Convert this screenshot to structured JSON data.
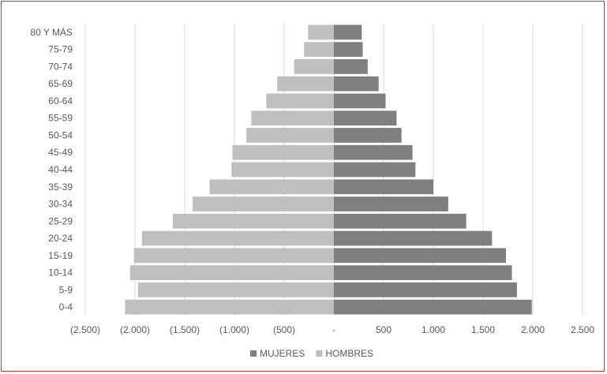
{
  "chart_data": {
    "type": "bar",
    "orientation": "horizontal",
    "stacked": true,
    "categories": [
      "80 Y MÁS",
      "75-79",
      "70-74",
      "65-69",
      "60-64",
      "55-59",
      "50-54",
      "45-49",
      "40-44",
      "35-39",
      "30-34",
      "25-29",
      "20-24",
      "15-19",
      "10-14",
      "5-9",
      "0-4"
    ],
    "series": [
      {
        "name": "MUJERES",
        "color": "#7f7f7f",
        "values": [
          280,
          290,
          340,
          450,
          520,
          630,
          680,
          790,
          820,
          1000,
          1150,
          1330,
          1590,
          1730,
          1790,
          1840,
          1990
        ]
      },
      {
        "name": "HOMBRES",
        "color": "#bfbfbf",
        "values": [
          -260,
          -300,
          -400,
          -570,
          -680,
          -830,
          -880,
          -1020,
          -1030,
          -1250,
          -1420,
          -1620,
          -1930,
          -2010,
          -2050,
          -1970,
          -2100
        ]
      }
    ],
    "xlim": [
      -2500,
      2500
    ],
    "x_ticks": [
      -2500,
      -2000,
      -1500,
      -1000,
      -500,
      0,
      500,
      1000,
      1500,
      2000,
      2500
    ],
    "x_tick_labels": [
      "(2.500)",
      "(2.000)",
      "(1.500)",
      "(1.000)",
      "(500)",
      "-",
      "500",
      "1.000",
      "1.500",
      "2.000",
      "2.500"
    ],
    "grid": true,
    "legend_position": "bottom"
  }
}
